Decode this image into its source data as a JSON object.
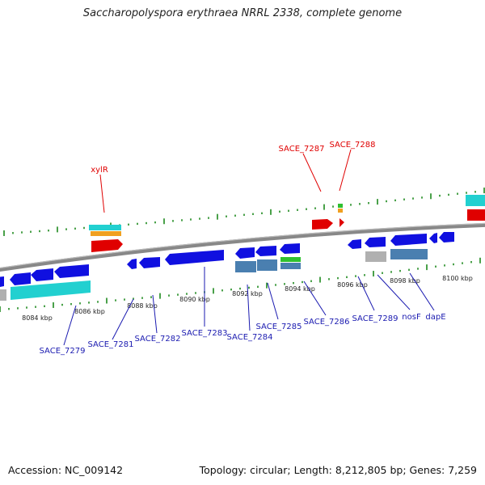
{
  "title": "Saccharopolyspora erythraea NRRL 2338, complete genome",
  "footer": {
    "accession": "Accession: NC_009142",
    "summary": "Topology: circular; Length: 8,212,805 bp; Genes: 7,259"
  },
  "colors": {
    "backbone": "#888888",
    "tick": "#1e8a1e",
    "gene_blue": "#1010e0",
    "gene_red": "#e00000",
    "gene_cyan": "#22d0d0",
    "gene_steel": "#4a7fb0",
    "gene_gray": "#b0b0b0",
    "gene_orange": "#f0a020",
    "gene_green": "#30c030",
    "label_red": "#e00000",
    "label_blue": "#1a1ab0"
  },
  "scale_labels": [
    "8084 kbp",
    "8086 kbp",
    "8088 kbp",
    "8090 kbp",
    "8092 kbp",
    "8094 kbp",
    "8096 kbp",
    "8098 kbp",
    "8100 kbp"
  ],
  "top_labels": [
    "xylR",
    "SACE_7287",
    "SACE_7288"
  ],
  "bottom_labels": [
    "SACE_7279",
    "SACE_7281",
    "SACE_7282",
    "SACE_7283",
    "SACE_7284",
    "SACE_7285",
    "SACE_7286",
    "SACE_7289",
    "nosF",
    "dapE"
  ]
}
